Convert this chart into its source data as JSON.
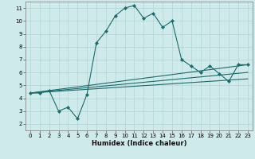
{
  "title": "",
  "xlabel": "Humidex (Indice chaleur)",
  "ylabel": "",
  "background_color": "#ceeaea",
  "grid_color": "#b8d8d8",
  "line_color": "#1a6b6b",
  "xlim": [
    -0.5,
    23.5
  ],
  "ylim": [
    1.5,
    11.5
  ],
  "xticks": [
    0,
    1,
    2,
    3,
    4,
    5,
    6,
    7,
    8,
    9,
    10,
    11,
    12,
    13,
    14,
    15,
    16,
    17,
    18,
    19,
    20,
    21,
    22,
    23
  ],
  "yticks": [
    2,
    3,
    4,
    5,
    6,
    7,
    8,
    9,
    10,
    11
  ],
  "series": [
    {
      "x": [
        0,
        1,
        2,
        3,
        4,
        5,
        6,
        7,
        8,
        9,
        10,
        11,
        12,
        13,
        14,
        15,
        16,
        17,
        18,
        19,
        20,
        21,
        22,
        23
      ],
      "y": [
        4.4,
        4.4,
        4.6,
        3.0,
        3.3,
        2.4,
        4.3,
        8.3,
        9.2,
        10.4,
        11.0,
        11.2,
        10.2,
        10.6,
        9.5,
        10.0,
        7.0,
        6.5,
        6.0,
        6.5,
        5.9,
        5.3,
        6.6,
        6.6
      ],
      "marker": true
    },
    {
      "x": [
        0,
        23
      ],
      "y": [
        4.4,
        6.6
      ],
      "marker": false
    },
    {
      "x": [
        0,
        23
      ],
      "y": [
        4.4,
        6.0
      ],
      "marker": false
    },
    {
      "x": [
        0,
        23
      ],
      "y": [
        4.4,
        5.5
      ],
      "marker": false
    }
  ]
}
